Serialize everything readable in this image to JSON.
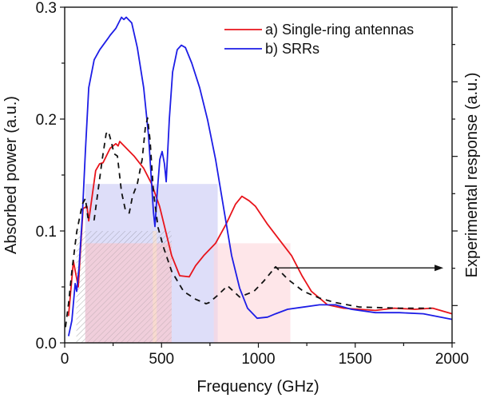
{
  "chart_data": {
    "type": "line",
    "title": "",
    "xlabel": "Frequency (GHz)",
    "ylabel": "Absorbed power (a.u.)",
    "ylabel_right": "Experimental response (a.u.)",
    "xlim": [
      0,
      2000
    ],
    "ylim": [
      0,
      0.3
    ],
    "xticks": [
      0,
      500,
      1000,
      1500,
      2000
    ],
    "xtick_labels": [
      "0",
      "500",
      "1000",
      "1500",
      "2000"
    ],
    "yticks": [
      0.0,
      0.1,
      0.2,
      0.3
    ],
    "ytick_labels": [
      "0.0",
      "0.1",
      "0.2",
      "0.3"
    ],
    "right_axis_ticks_unlabeled": 10,
    "grid": false,
    "legend": {
      "placement": "top-right",
      "entries": [
        {
          "label": "a) Single-ring antennas",
          "color": "#e8141b"
        },
        {
          "label": "b) SRRs",
          "color": "#1d1de6"
        }
      ]
    },
    "series": [
      {
        "name": "a) Single-ring antennas",
        "color": "#e8141b",
        "style": "solid",
        "x": [
          20,
          45,
          70,
          95,
          115,
          124,
          160,
          180,
          198,
          235,
          264,
          276,
          284,
          358,
          408,
          449,
          490,
          552,
          594,
          643,
          676,
          718,
          779,
          833,
          882,
          915,
          952,
          985,
          1047,
          1109,
          1171,
          1225,
          1274,
          1357,
          1439,
          1520,
          1604,
          1700,
          1810,
          1900,
          2000
        ],
        "y": [
          0.024,
          0.073,
          0.05,
          0.12,
          0.122,
          0.109,
          0.154,
          0.16,
          0.161,
          0.174,
          0.178,
          0.176,
          0.18,
          0.167,
          0.156,
          0.142,
          0.122,
          0.078,
          0.06,
          0.059,
          0.069,
          0.078,
          0.089,
          0.106,
          0.124,
          0.131,
          0.127,
          0.122,
          0.106,
          0.092,
          0.078,
          0.06,
          0.046,
          0.034,
          0.031,
          0.03,
          0.029,
          0.031,
          0.03,
          0.031,
          0.026
        ]
      },
      {
        "name": "b) SRRs",
        "color": "#1d1de6",
        "style": "solid",
        "x": [
          20,
          37,
          54,
          62,
          74,
          91,
          107,
          124,
          152,
          181,
          223,
          235,
          264,
          293,
          305,
          318,
          346,
          375,
          408,
          433,
          458,
          466,
          478,
          491,
          503,
          515,
          524,
          540,
          557,
          581,
          602,
          623,
          656,
          697,
          738,
          779,
          820,
          862,
          903,
          944,
          994,
          1047,
          1089,
          1151,
          1233,
          1316,
          1398,
          1480,
          1604,
          1728,
          1852,
          2000
        ],
        "y": [
          0.006,
          0.02,
          0.053,
          0.046,
          0.067,
          0.114,
          0.171,
          0.228,
          0.253,
          0.262,
          0.272,
          0.275,
          0.281,
          0.291,
          0.289,
          0.291,
          0.286,
          0.264,
          0.228,
          0.185,
          0.117,
          0.104,
          0.135,
          0.164,
          0.171,
          0.16,
          0.144,
          0.2,
          0.242,
          0.262,
          0.266,
          0.264,
          0.25,
          0.228,
          0.199,
          0.164,
          0.121,
          0.078,
          0.049,
          0.031,
          0.022,
          0.023,
          0.026,
          0.03,
          0.032,
          0.034,
          0.034,
          0.03,
          0.027,
          0.027,
          0.026,
          0.021
        ]
      },
      {
        "name": "Experimental response",
        "color": "#111111",
        "style": "dashed",
        "x": [
          4,
          20,
          37,
          62,
          91,
          107,
          120,
          152,
          177,
          194,
          214,
          226,
          243,
          255,
          272,
          293,
          313,
          333,
          350,
          375,
          400,
          416,
          428,
          441,
          458,
          482,
          511,
          552,
          614,
          676,
          730,
          746,
          787,
          841,
          903,
          977,
          1027,
          1089,
          1151,
          1233,
          1316,
          1398,
          1522,
          1728,
          1893
        ],
        "y": [
          0.014,
          0.035,
          0.064,
          0.099,
          0.124,
          0.129,
          0.112,
          0.11,
          0.142,
          0.164,
          0.187,
          0.189,
          0.178,
          0.169,
          0.167,
          0.135,
          0.119,
          0.116,
          0.131,
          0.142,
          0.164,
          0.192,
          0.201,
          0.181,
          0.135,
          0.103,
          0.085,
          0.064,
          0.046,
          0.039,
          0.035,
          0.036,
          0.042,
          0.051,
          0.041,
          0.046,
          0.055,
          0.068,
          0.057,
          0.046,
          0.04,
          0.036,
          0.032,
          0.031,
          0.031
        ]
      }
    ],
    "shaded_regions": [
      {
        "name": "hatched-band",
        "x0": 60,
        "x1": 552,
        "top": 0.1,
        "color": "#b0b0b0",
        "pattern": "hatch"
      },
      {
        "name": "blue-band",
        "x0": 106,
        "x1": 790,
        "top": 0.142,
        "color": "#c8c8f5"
      },
      {
        "name": "red-band-a",
        "x0": 106,
        "x1": 552,
        "top": 0.089,
        "color": "#f5c8d0"
      },
      {
        "name": "red-band-b",
        "x0": 770,
        "x1": 1165,
        "top": 0.089,
        "color": "#fdd6da"
      },
      {
        "name": "orange-strip",
        "x0": 455,
        "x1": 475,
        "top": 0.1,
        "color": "#fde3c8"
      }
    ],
    "annotations": [
      {
        "type": "arrow",
        "from": [
          1080,
          0.067
        ],
        "to": [
          1955,
          0.067
        ],
        "color": "#111111"
      }
    ]
  }
}
